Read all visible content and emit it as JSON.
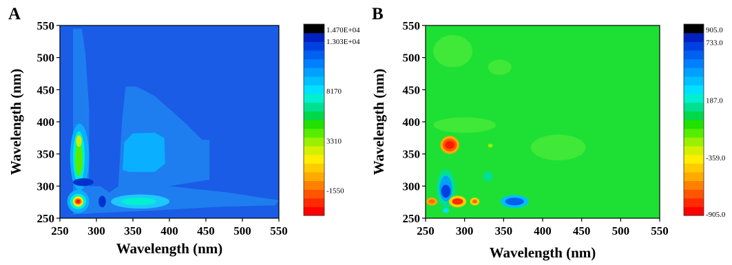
{
  "chart_data": [
    {
      "panel_label": "A",
      "type": "heatmap",
      "xlabel": "Wavelength (nm)",
      "ylabel": "Wavelength (nm)",
      "xlim": [
        250,
        550
      ],
      "ylim": [
        250,
        550
      ],
      "x_ticks": [
        250,
        300,
        350,
        400,
        450,
        500,
        550
      ],
      "y_ticks": [
        250,
        300,
        350,
        400,
        450,
        500,
        550
      ],
      "background_color": "#1a5ce6",
      "colorbar": {
        "range": [
          -4000,
          14700
        ],
        "colors": [
          "#ff0000",
          "#ff2a00",
          "#ff5500",
          "#ff8000",
          "#ffaa00",
          "#ffcc00",
          "#ffee00",
          "#d4f000",
          "#99f000",
          "#55ee00",
          "#22e000",
          "#00d84a",
          "#00e090",
          "#00f0d0",
          "#00e0ff",
          "#00c0ff",
          "#00a0ff",
          "#0080ff",
          "#0060f0",
          "#0040e0",
          "#0020c0",
          "#000000"
        ],
        "labels": [
          {
            "value": -1550,
            "text": "-1550"
          },
          {
            "value": 3310,
            "text": "3310"
          },
          {
            "value": 8170,
            "text": "8170"
          },
          {
            "value": 13030,
            "text": "1.303E+04"
          },
          {
            "value": 14700,
            "text": "1.470E+04"
          }
        ]
      },
      "regions": [
        {
          "kind": "poly",
          "color": "#1e7ef0",
          "pts": [
            [
              268,
              255
            ],
            [
              268,
              545
            ],
            [
              280,
              545
            ],
            [
              285,
              505
            ],
            [
              290,
              420
            ],
            [
              290,
              300
            ],
            [
              305,
              300
            ],
            [
              318,
              290
            ],
            [
              330,
              300
            ],
            [
              335,
              400
            ],
            [
              340,
              455
            ],
            [
              355,
              455
            ],
            [
              380,
              440
            ],
            [
              420,
              400
            ],
            [
              445,
              372
            ],
            [
              455,
              372
            ],
            [
              455,
              310
            ],
            [
              400,
              300
            ],
            [
              480,
              290
            ],
            [
              520,
              283
            ],
            [
              550,
              278
            ],
            [
              545,
              270
            ],
            [
              470,
              268
            ],
            [
              380,
              262
            ],
            [
              300,
              258
            ],
            [
              258,
              255
            ]
          ]
        },
        {
          "kind": "ellipse",
          "color": "#0ab0ff",
          "cx": 277,
          "cy": 345,
          "rx": 13,
          "ry": 52
        },
        {
          "kind": "poly",
          "color": "#0ab0ff",
          "pts": [
            [
              336,
              325
            ],
            [
              338,
              368
            ],
            [
              350,
              382
            ],
            [
              380,
              383
            ],
            [
              393,
              375
            ],
            [
              394,
              335
            ],
            [
              380,
              322
            ],
            [
              345,
              322
            ]
          ]
        },
        {
          "kind": "ellipse",
          "color": "#1ec8ff",
          "cx": 360,
          "cy": 276,
          "rx": 40,
          "ry": 11
        },
        {
          "kind": "ellipse",
          "color": "#0ab0ff",
          "cx": 275,
          "cy": 276,
          "rx": 15,
          "ry": 18
        },
        {
          "kind": "ellipse",
          "color": "#00f0d0",
          "cx": 276,
          "cy": 345,
          "rx": 8,
          "ry": 40
        },
        {
          "kind": "ellipse",
          "color": "#55ee00",
          "cx": 276,
          "cy": 342,
          "rx": 5,
          "ry": 26
        },
        {
          "kind": "ellipse",
          "color": "#c8f000",
          "cx": 276,
          "cy": 370,
          "rx": 4,
          "ry": 9
        },
        {
          "kind": "ellipse",
          "color": "#00f0d0",
          "cx": 358,
          "cy": 276,
          "rx": 24,
          "ry": 6
        },
        {
          "kind": "ellipse",
          "color": "#00f0d0",
          "cx": 275,
          "cy": 276,
          "rx": 11,
          "ry": 12
        },
        {
          "kind": "ellipse",
          "color": "#ffee00",
          "cx": 275,
          "cy": 276,
          "rx": 7,
          "ry": 8
        },
        {
          "kind": "ellipse",
          "color": "#ff7700",
          "cx": 275,
          "cy": 276,
          "rx": 5,
          "ry": 5
        },
        {
          "kind": "ellipse",
          "color": "#ff1a00",
          "cx": 275,
          "cy": 276,
          "rx": 3,
          "ry": 3
        },
        {
          "kind": "ellipse",
          "color": "#0033cc",
          "cx": 282,
          "cy": 306,
          "rx": 14,
          "ry": 6
        },
        {
          "kind": "ellipse",
          "color": "#0033cc",
          "cx": 308,
          "cy": 276,
          "rx": 5,
          "ry": 9
        }
      ]
    },
    {
      "panel_label": "B",
      "type": "heatmap",
      "xlabel": "Wavelength (nm)",
      "ylabel": "Wavelength (nm)",
      "xlim": [
        250,
        550
      ],
      "ylim": [
        250,
        550
      ],
      "x_ticks": [
        250,
        300,
        350,
        400,
        450,
        500,
        550
      ],
      "y_ticks": [
        250,
        300,
        350,
        400,
        450,
        500,
        550
      ],
      "background_color": "#1ee034",
      "colorbar": {
        "range": [
          -905,
          905
        ],
        "colors": [
          "#ff0000",
          "#ff2a00",
          "#ff5500",
          "#ff8000",
          "#ffaa00",
          "#ffcc00",
          "#ffee00",
          "#d4f000",
          "#99f000",
          "#55ee00",
          "#22e000",
          "#00d84a",
          "#00e090",
          "#00f0d0",
          "#00e0ff",
          "#00c0ff",
          "#00a0ff",
          "#0080ff",
          "#0060f0",
          "#0040e0",
          "#0020c0",
          "#000000"
        ],
        "labels": [
          {
            "value": -905.0,
            "text": "-905.0"
          },
          {
            "value": -359.0,
            "text": "-359.0"
          },
          {
            "value": 187.0,
            "text": "187.0"
          },
          {
            "value": 733.0,
            "text": "733.0"
          },
          {
            "value": 905.0,
            "text": "905.0"
          }
        ]
      },
      "regions": [
        {
          "kind": "ellipse",
          "color": "#40e838",
          "cx": 285,
          "cy": 510,
          "rx": 25,
          "ry": 25
        },
        {
          "kind": "ellipse",
          "color": "#40e838",
          "cx": 345,
          "cy": 485,
          "rx": 15,
          "ry": 12
        },
        {
          "kind": "ellipse",
          "color": "#40e838",
          "cx": 420,
          "cy": 360,
          "rx": 35,
          "ry": 20
        },
        {
          "kind": "ellipse",
          "color": "#40e838",
          "cx": 300,
          "cy": 395,
          "rx": 40,
          "ry": 12
        },
        {
          "kind": "ellipse",
          "color": "#ffaa00",
          "cx": 281,
          "cy": 364,
          "rx": 12,
          "ry": 14
        },
        {
          "kind": "ellipse",
          "color": "#ff5500",
          "cx": 281,
          "cy": 364,
          "rx": 9,
          "ry": 10
        },
        {
          "kind": "ellipse",
          "color": "#ff1a00",
          "cx": 281,
          "cy": 364,
          "rx": 6,
          "ry": 6
        },
        {
          "kind": "ellipse",
          "color": "#00e090",
          "cx": 276,
          "cy": 296,
          "rx": 12,
          "ry": 30
        },
        {
          "kind": "ellipse",
          "color": "#00a0ff",
          "cx": 276,
          "cy": 296,
          "rx": 8,
          "ry": 20
        },
        {
          "kind": "ellipse",
          "color": "#0040e0",
          "cx": 276,
          "cy": 292,
          "rx": 6,
          "ry": 10
        },
        {
          "kind": "ellipse",
          "color": "#00e0ff",
          "cx": 276,
          "cy": 262,
          "rx": 4,
          "ry": 4
        },
        {
          "kind": "ellipse",
          "color": "#00c0ff",
          "cx": 364,
          "cy": 276,
          "rx": 18,
          "ry": 10
        },
        {
          "kind": "ellipse",
          "color": "#0060f0",
          "cx": 364,
          "cy": 276,
          "rx": 12,
          "ry": 6
        },
        {
          "kind": "ellipse",
          "color": "#ffaa00",
          "cx": 258,
          "cy": 276,
          "rx": 7,
          "ry": 6
        },
        {
          "kind": "ellipse",
          "color": "#ff6600",
          "cx": 258,
          "cy": 276,
          "rx": 4,
          "ry": 3
        },
        {
          "kind": "ellipse",
          "color": "#ffcc00",
          "cx": 291,
          "cy": 276,
          "rx": 11,
          "ry": 9
        },
        {
          "kind": "ellipse",
          "color": "#ff2a00",
          "cx": 291,
          "cy": 276,
          "rx": 7,
          "ry": 5
        },
        {
          "kind": "ellipse",
          "color": "#ffcc00",
          "cx": 313,
          "cy": 276,
          "rx": 6,
          "ry": 6
        },
        {
          "kind": "ellipse",
          "color": "#ff6600",
          "cx": 313,
          "cy": 276,
          "rx": 3,
          "ry": 3
        },
        {
          "kind": "ellipse",
          "color": "#00e090",
          "cx": 330,
          "cy": 315,
          "rx": 6,
          "ry": 8
        },
        {
          "kind": "ellipse",
          "color": "#99f000",
          "cx": 333,
          "cy": 363,
          "rx": 3,
          "ry": 3
        }
      ]
    }
  ]
}
